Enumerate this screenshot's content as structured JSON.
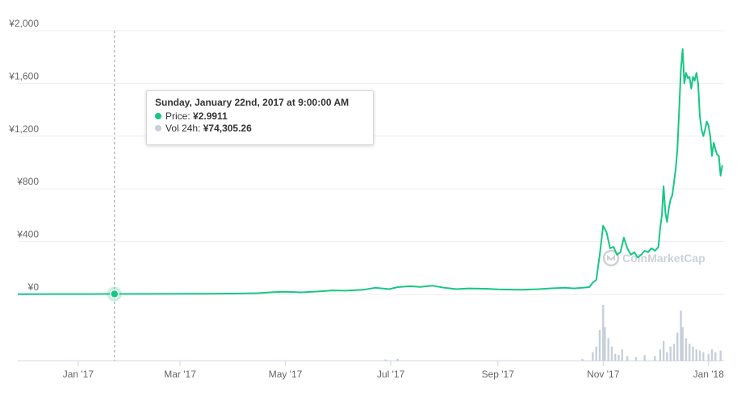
{
  "chart_data": {
    "type": "line",
    "y_ticks": [
      "¥2,000",
      "¥1,600",
      "¥1,200",
      "¥800",
      "¥400",
      "¥0"
    ],
    "y_tick_values": [
      2000,
      1600,
      1200,
      800,
      400,
      0
    ],
    "x_ticks": [
      "Jan '17",
      "Mar '17",
      "May '17",
      "Jul '17",
      "Sep '17",
      "Nov '17",
      "Jan '18"
    ],
    "x_tick_dates": [
      "2017-01-01",
      "2017-03-01",
      "2017-05-01",
      "2017-07-01",
      "2017-09-01",
      "2017-11-01",
      "2018-01-01"
    ],
    "x_range": [
      "2016-11-27",
      "2018-01-10"
    ],
    "ylim": [
      0,
      2000
    ],
    "grid": true,
    "series": [
      {
        "name": "Price",
        "color": "#16c784",
        "points": [
          [
            "2016-11-27",
            2
          ],
          [
            "2016-12-15",
            2.5
          ],
          [
            "2017-01-10",
            2.7
          ],
          [
            "2017-01-22",
            2.9911
          ],
          [
            "2017-02-15",
            3.5
          ],
          [
            "2017-03-10",
            4
          ],
          [
            "2017-04-01",
            6
          ],
          [
            "2017-04-15",
            9
          ],
          [
            "2017-04-25",
            18
          ],
          [
            "2017-05-01",
            20
          ],
          [
            "2017-05-10",
            15
          ],
          [
            "2017-05-20",
            22
          ],
          [
            "2017-05-28",
            30
          ],
          [
            "2017-06-05",
            28
          ],
          [
            "2017-06-15",
            35
          ],
          [
            "2017-06-22",
            50
          ],
          [
            "2017-06-30",
            40
          ],
          [
            "2017-07-05",
            55
          ],
          [
            "2017-07-12",
            62
          ],
          [
            "2017-07-18",
            57
          ],
          [
            "2017-07-25",
            66
          ],
          [
            "2017-08-01",
            50
          ],
          [
            "2017-08-08",
            40
          ],
          [
            "2017-08-15",
            45
          ],
          [
            "2017-08-25",
            43
          ],
          [
            "2017-09-01",
            38
          ],
          [
            "2017-09-15",
            35
          ],
          [
            "2017-09-25",
            40
          ],
          [
            "2017-10-01",
            45
          ],
          [
            "2017-10-10",
            50
          ],
          [
            "2017-10-15",
            45
          ],
          [
            "2017-10-20",
            50
          ],
          [
            "2017-10-24",
            55
          ],
          [
            "2017-10-26",
            90
          ],
          [
            "2017-10-28",
            110
          ],
          [
            "2017-10-30",
            300
          ],
          [
            "2017-11-01",
            520
          ],
          [
            "2017-11-03",
            470
          ],
          [
            "2017-11-05",
            350
          ],
          [
            "2017-11-07",
            360
          ],
          [
            "2017-11-09",
            300
          ],
          [
            "2017-11-11",
            320
          ],
          [
            "2017-11-13",
            430
          ],
          [
            "2017-11-15",
            350
          ],
          [
            "2017-11-17",
            300
          ],
          [
            "2017-11-19",
            320
          ],
          [
            "2017-11-21",
            280
          ],
          [
            "2017-11-23",
            300
          ],
          [
            "2017-11-25",
            330
          ],
          [
            "2017-11-27",
            320
          ],
          [
            "2017-11-29",
            350
          ],
          [
            "2017-12-01",
            330
          ],
          [
            "2017-12-03",
            360
          ],
          [
            "2017-12-04",
            500
          ],
          [
            "2017-12-05",
            600
          ],
          [
            "2017-12-06",
            820
          ],
          [
            "2017-12-07",
            620
          ],
          [
            "2017-12-08",
            550
          ],
          [
            "2017-12-09",
            650
          ],
          [
            "2017-12-10",
            720
          ],
          [
            "2017-12-11",
            750
          ],
          [
            "2017-12-12",
            850
          ],
          [
            "2017-12-13",
            950
          ],
          [
            "2017-12-14",
            1100
          ],
          [
            "2017-12-15",
            1400
          ],
          [
            "2017-12-16",
            1700
          ],
          [
            "2017-12-17",
            1860
          ],
          [
            "2017-12-18",
            1600
          ],
          [
            "2017-12-19",
            1680
          ],
          [
            "2017-12-20",
            1640
          ],
          [
            "2017-12-21",
            1650
          ],
          [
            "2017-12-22",
            1560
          ],
          [
            "2017-12-23",
            1650
          ],
          [
            "2017-12-24",
            1620
          ],
          [
            "2017-12-25",
            1680
          ],
          [
            "2017-12-26",
            1600
          ],
          [
            "2017-12-27",
            1350
          ],
          [
            "2017-12-28",
            1250
          ],
          [
            "2017-12-29",
            1200
          ],
          [
            "2017-12-30",
            1250
          ],
          [
            "2017-12-31",
            1310
          ],
          [
            "2018-01-01",
            1280
          ],
          [
            "2018-01-02",
            1200
          ],
          [
            "2018-01-03",
            1050
          ],
          [
            "2018-01-04",
            1150
          ],
          [
            "2018-01-05",
            1100
          ],
          [
            "2018-01-06",
            1060
          ],
          [
            "2018-01-07",
            1050
          ],
          [
            "2018-01-08",
            900
          ],
          [
            "2018-01-09",
            980
          ]
        ]
      },
      {
        "name": "Vol 24h",
        "color": "#c8cfdb",
        "points": [
          [
            "2017-06-28",
            2
          ],
          [
            "2017-07-05",
            3
          ],
          [
            "2017-10-20",
            3
          ],
          [
            "2017-10-26",
            15
          ],
          [
            "2017-10-28",
            25
          ],
          [
            "2017-10-30",
            55
          ],
          [
            "2017-11-01",
            100
          ],
          [
            "2017-11-02",
            60
          ],
          [
            "2017-11-04",
            40
          ],
          [
            "2017-11-06",
            25
          ],
          [
            "2017-11-08",
            12
          ],
          [
            "2017-11-10",
            10
          ],
          [
            "2017-11-12",
            20
          ],
          [
            "2017-11-15",
            8
          ],
          [
            "2017-11-20",
            6
          ],
          [
            "2017-11-25",
            10
          ],
          [
            "2017-12-01",
            8
          ],
          [
            "2017-12-04",
            20
          ],
          [
            "2017-12-06",
            35
          ],
          [
            "2017-12-08",
            15
          ],
          [
            "2017-12-10",
            25
          ],
          [
            "2017-12-12",
            30
          ],
          [
            "2017-12-14",
            50
          ],
          [
            "2017-12-16",
            90
          ],
          [
            "2017-12-17",
            60
          ],
          [
            "2017-12-19",
            40
          ],
          [
            "2017-12-21",
            30
          ],
          [
            "2017-12-23",
            25
          ],
          [
            "2017-12-25",
            20
          ],
          [
            "2017-12-27",
            18
          ],
          [
            "2017-12-29",
            15
          ],
          [
            "2018-01-01",
            12
          ],
          [
            "2018-01-03",
            20
          ],
          [
            "2018-01-05",
            15
          ],
          [
            "2018-01-08",
            18
          ]
        ]
      }
    ],
    "highlight_date": "2017-01-22",
    "highlight_value": 2.9911
  },
  "tooltip": {
    "title": "Sunday, January 22nd, 2017 at 9:00:00 AM",
    "price_label": "Price:",
    "price_value": "¥2.9911",
    "vol_label": "Vol 24h:",
    "vol_value": "¥74,305.26",
    "price_color": "#16c784",
    "vol_color": "#c8cfdb"
  },
  "watermark": {
    "text": "CoinMarketCap",
    "icon": "coinmarketcap-logo-icon"
  }
}
